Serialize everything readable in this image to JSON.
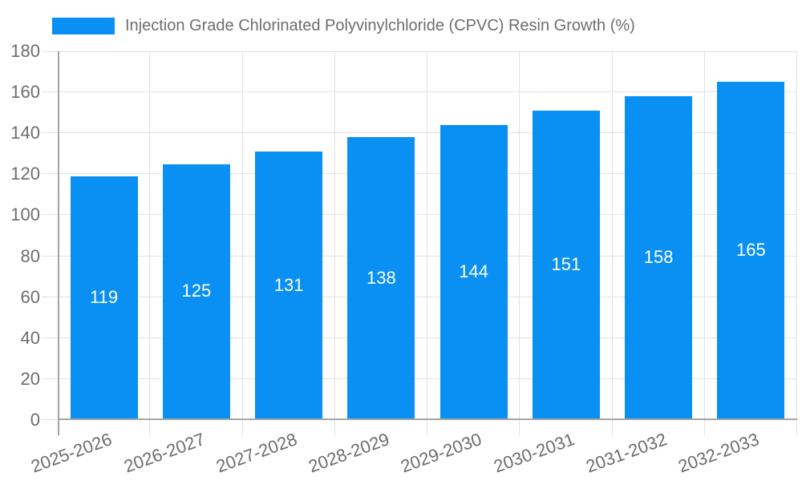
{
  "legend": {
    "label": "Injection Grade Chlorinated Polyvinylchloride (CPVC) Resin Growth (%)"
  },
  "chart_data": {
    "type": "bar",
    "title": "Injection Grade Chlorinated Polyvinylchloride (CPVC) Resin Growth (%)",
    "categories": [
      "2025-2026",
      "2026-2027",
      "2027-2028",
      "2028-2029",
      "2029-2030",
      "2030-2031",
      "2031-2032",
      "2032-2033"
    ],
    "values": [
      119,
      125,
      131,
      138,
      144,
      151,
      158,
      165
    ],
    "value_labels": [
      "119",
      "125",
      "131",
      "138",
      "144",
      "151",
      "158",
      "165"
    ],
    "xlabel": "",
    "ylabel": "",
    "ylim": [
      0,
      180
    ],
    "ytick_step": 20,
    "ytick_labels": [
      "0",
      "20",
      "40",
      "60",
      "80",
      "100",
      "120",
      "140",
      "160",
      "180"
    ],
    "grid": true,
    "legend_position": "top-left",
    "bar_value_labels_shown": true
  },
  "colors": {
    "bar": "#0a90f2",
    "grid": "#e2e2e2",
    "axis": "#a5a5a5",
    "text": "#6d6d6d",
    "value_label": "#ffffff",
    "background": "#ffffff"
  }
}
